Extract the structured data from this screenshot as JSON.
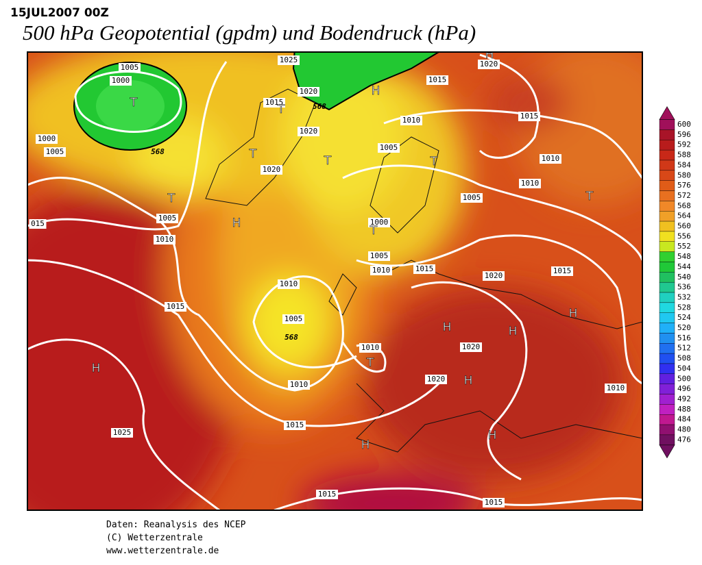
{
  "header": {
    "date": "15JUL2007 00Z",
    "title": "500 hPa Geopotential (gpdm) und Bodendruck (hPa)"
  },
  "map": {
    "isobar_labels": [
      "1005",
      "1000",
      "1025",
      "1020",
      "1015",
      "1020",
      "1015",
      "1010",
      "1015",
      "1000",
      "1005",
      "1020",
      "1005",
      "1010",
      "1020",
      "1010",
      "1005",
      "1005",
      "015",
      "1010",
      "1000",
      "1005",
      "1010",
      "1015",
      "1020",
      "1015",
      "1010",
      "1015",
      "1005",
      "1010",
      "1020",
      "1020",
      "1010",
      "1010",
      "1015",
      "1025",
      "1015",
      "1015"
    ],
    "pressure_centers": [
      "T",
      "T",
      "T",
      "T",
      "T",
      "T",
      "T",
      "T",
      "T",
      "H",
      "H",
      "H",
      "H",
      "H",
      "H",
      "H",
      "H",
      "H",
      "H"
    ],
    "height_labels": [
      "568",
      "568",
      "568"
    ]
  },
  "colorbar": {
    "levels": [
      600,
      596,
      592,
      588,
      584,
      580,
      576,
      572,
      568,
      564,
      560,
      556,
      552,
      548,
      544,
      540,
      536,
      532,
      528,
      524,
      520,
      516,
      512,
      508,
      504,
      500,
      496,
      492,
      488,
      484,
      480,
      476
    ],
    "colors": [
      "#a0105a",
      "#a81428",
      "#b81c1c",
      "#c82818",
      "#d03818",
      "#d84818",
      "#e05c18",
      "#e87020",
      "#f08828",
      "#f0a028",
      "#f0c020",
      "#f0e020",
      "#c8e820",
      "#30d030",
      "#20c838",
      "#20c060",
      "#20c890",
      "#20d0c0",
      "#20d8e0",
      "#20c8f0",
      "#20b0f8",
      "#2090f0",
      "#2070f0",
      "#2050f0",
      "#3030f0",
      "#6020e0",
      "#8020d8",
      "#a020d0",
      "#c020c0",
      "#c01890",
      "#901070",
      "#701060"
    ]
  },
  "footer": {
    "lines": [
      "Daten: Reanalysis des NCEP",
      "(C) Wetterzentrale",
      "www.wetterzentrale.de"
    ]
  }
}
